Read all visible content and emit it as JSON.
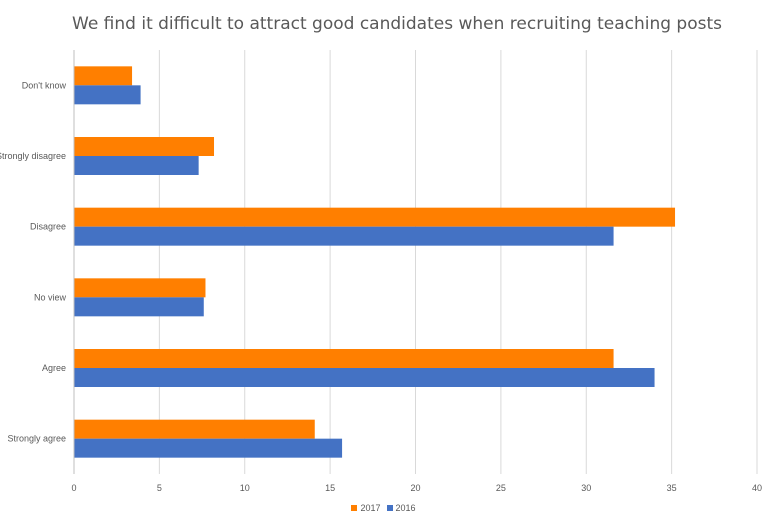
{
  "chart_data": {
    "type": "bar",
    "orientation": "horizontal",
    "title": "We find it difficult to attract good candidates when recruiting teaching posts",
    "categories": [
      "Don't know",
      "Strongly disagree",
      "Disagree",
      "No view",
      "Agree",
      "Strongly agree"
    ],
    "series": [
      {
        "name": "2017",
        "color": "#FF7F00",
        "values": [
          3.4,
          8.2,
          35.2,
          7.7,
          31.6,
          14.1
        ]
      },
      {
        "name": "2016",
        "color": "#4472C4",
        "values": [
          3.9,
          7.3,
          31.6,
          7.6,
          34.0,
          15.7
        ]
      }
    ],
    "xlim": [
      0,
      40
    ],
    "xticks": [
      0,
      5,
      10,
      15,
      20,
      25,
      30,
      35,
      40
    ],
    "grid": true,
    "legend": "bottom",
    "xlabel": "",
    "ylabel": ""
  }
}
